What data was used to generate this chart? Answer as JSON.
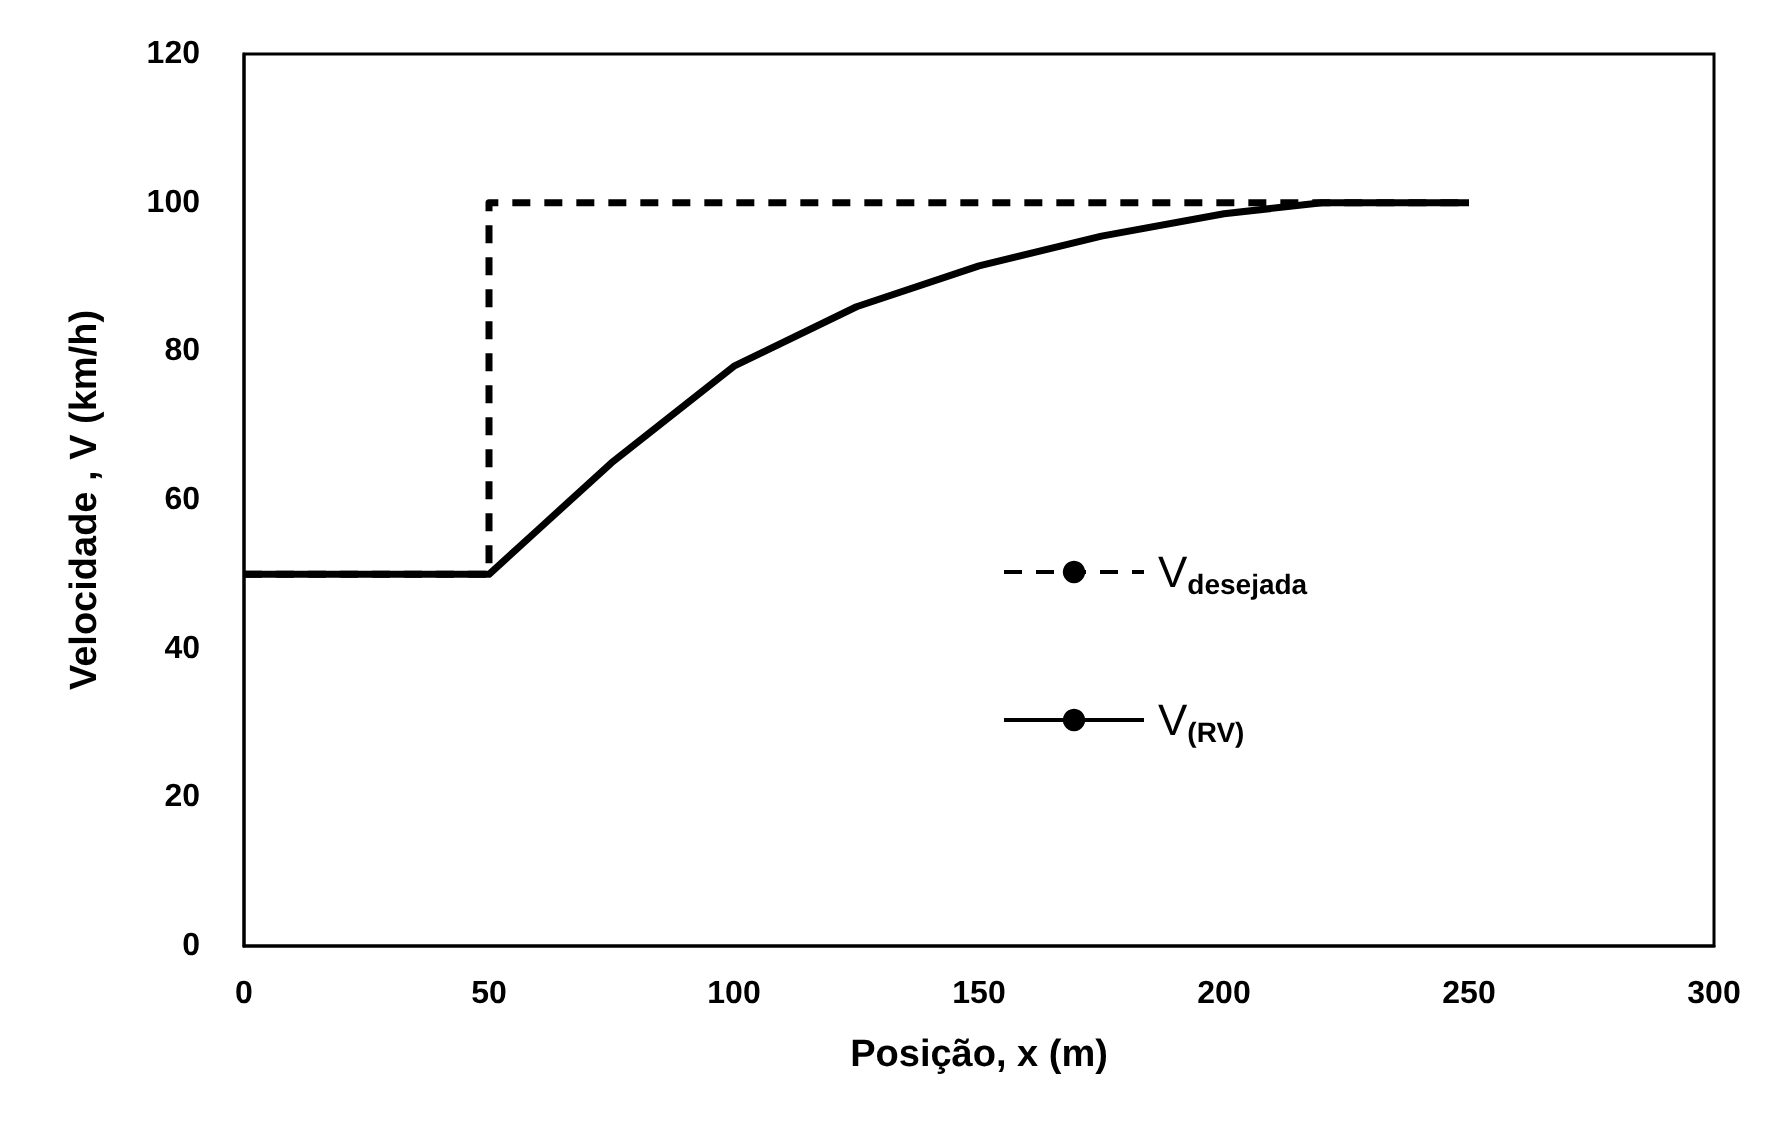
{
  "chart_data": {
    "type": "line",
    "xlabel": "Posição, x (m)",
    "ylabel": "Velocidade , V (km/h)",
    "xlim": [
      0,
      300
    ],
    "xticks": [
      0,
      50,
      100,
      150,
      200,
      250,
      300
    ],
    "ylim": [
      0,
      120
    ],
    "yticks": [
      0,
      20,
      40,
      60,
      80,
      100,
      120
    ],
    "grid": false,
    "legend": "right",
    "marker": "none",
    "series": [
      {
        "name": "V$_{desejada}$",
        "color": "#000000",
        "line_style": "dashed",
        "x": [
          0,
          50,
          50,
          250
        ],
        "values": [
          50,
          50,
          100,
          100
        ]
      },
      {
        "name": "V$_{(RV)}$",
        "color": "#000000",
        "line_style": "solid",
        "x": [
          0,
          50,
          60,
          75,
          100,
          125,
          150,
          175,
          200,
          220,
          250
        ],
        "values": [
          50,
          50,
          56,
          65,
          78,
          86,
          91.5,
          95.5,
          98.5,
          100,
          100
        ]
      }
    ]
  }
}
